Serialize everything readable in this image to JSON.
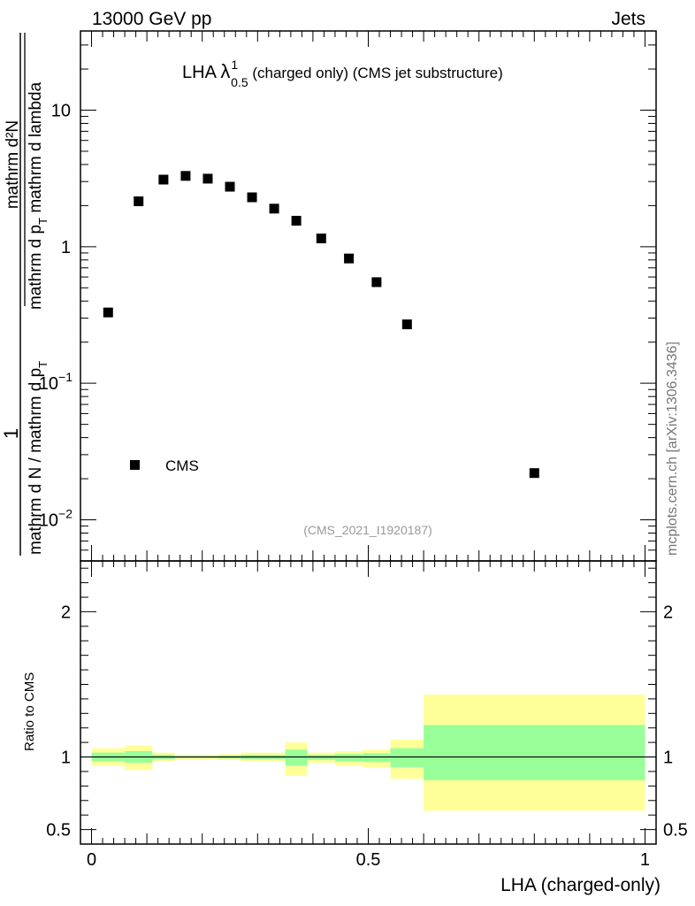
{
  "header": {
    "left": "13000 GeV pp",
    "right": "Jets"
  },
  "watermark": "mcplots.cern.ch [arXiv:1306.3436]",
  "analysis_id": "(CMS_2021_I1920187)",
  "main_ylabel": {
    "numerator": "1",
    "denominator": "mathrm d N / mathrm d p",
    "denominator_sub": "T",
    "dNdp_top": "mathrm d²N",
    "dNdp_bottom": "mathrm d p",
    "dNdp_bottom_sub": "T",
    "dNdp_bottom_rest": " mathrm d lambda"
  },
  "chart_data": [
    {
      "type": "scatter",
      "title": {
        "prefix": "LHA ",
        "lambda": "λ",
        "sup": "1",
        "sub": "0.5",
        "suffix": " (charged only) (CMS jet substructure)"
      },
      "yscale": "log",
      "xlim": [
        -0.02,
        1.02
      ],
      "ylim": [
        0.005,
        38
      ],
      "yticks": [
        {
          "value": 0.01,
          "label": "10",
          "sup": "−2"
        },
        {
          "value": 0.1,
          "label": "10",
          "sup": "−1"
        },
        {
          "value": 1,
          "label": "1",
          "sup": ""
        },
        {
          "value": 10,
          "label": "10",
          "sup": ""
        }
      ],
      "legend": {
        "label": "CMS",
        "position": "bottom-left"
      },
      "series": [
        {
          "name": "CMS",
          "color": "#000000",
          "points": [
            {
              "x": 0.03,
              "y": 0.33
            },
            {
              "x": 0.085,
              "y": 2.15
            },
            {
              "x": 0.13,
              "y": 3.1
            },
            {
              "x": 0.17,
              "y": 3.3
            },
            {
              "x": 0.21,
              "y": 3.15
            },
            {
              "x": 0.25,
              "y": 2.75
            },
            {
              "x": 0.29,
              "y": 2.3
            },
            {
              "x": 0.33,
              "y": 1.9
            },
            {
              "x": 0.37,
              "y": 1.55
            },
            {
              "x": 0.415,
              "y": 1.15
            },
            {
              "x": 0.465,
              "y": 0.82
            },
            {
              "x": 0.515,
              "y": 0.55
            },
            {
              "x": 0.57,
              "y": 0.27
            },
            {
              "x": 0.8,
              "y": 0.022
            }
          ]
        }
      ]
    },
    {
      "type": "area",
      "ylabel": "Ratio to CMS",
      "xlabel": "LHA (charged-only)",
      "xlim": [
        -0.02,
        1.02
      ],
      "ylim": [
        0.4,
        2.35
      ],
      "xticks": [
        {
          "value": 0,
          "label": "0"
        },
        {
          "value": 0.5,
          "label": "0.5"
        },
        {
          "value": 1,
          "label": "1"
        }
      ],
      "yticks": [
        {
          "value": 0.5,
          "label": "0.5"
        },
        {
          "value": 1,
          "label": "1"
        },
        {
          "value": 2,
          "label": "2"
        }
      ],
      "reference_line": 1,
      "band_colors": {
        "outer": "#ffff99",
        "inner": "#99ff99"
      },
      "bands": [
        {
          "x0": 0.0,
          "x1": 0.06,
          "outer": [
            0.94,
            1.06
          ],
          "inner": [
            0.97,
            1.03
          ]
        },
        {
          "x0": 0.06,
          "x1": 0.11,
          "outer": [
            0.91,
            1.08
          ],
          "inner": [
            0.96,
            1.04
          ]
        },
        {
          "x0": 0.11,
          "x1": 0.15,
          "outer": [
            0.97,
            1.03
          ],
          "inner": [
            0.985,
            1.015
          ]
        },
        {
          "x0": 0.15,
          "x1": 0.19,
          "outer": [
            0.985,
            1.015
          ],
          "inner": [
            0.993,
            1.007
          ]
        },
        {
          "x0": 0.19,
          "x1": 0.23,
          "outer": [
            0.985,
            1.015
          ],
          "inner": [
            0.993,
            1.007
          ]
        },
        {
          "x0": 0.23,
          "x1": 0.27,
          "outer": [
            0.98,
            1.02
          ],
          "inner": [
            0.99,
            1.01
          ]
        },
        {
          "x0": 0.27,
          "x1": 0.35,
          "outer": [
            0.97,
            1.03
          ],
          "inner": [
            0.985,
            1.015
          ]
        },
        {
          "x0": 0.35,
          "x1": 0.39,
          "outer": [
            0.87,
            1.1
          ],
          "inner": [
            0.94,
            1.05
          ]
        },
        {
          "x0": 0.39,
          "x1": 0.44,
          "outer": [
            0.96,
            1.03
          ],
          "inner": [
            0.98,
            1.015
          ]
        },
        {
          "x0": 0.44,
          "x1": 0.49,
          "outer": [
            0.94,
            1.04
          ],
          "inner": [
            0.97,
            1.02
          ]
        },
        {
          "x0": 0.49,
          "x1": 0.54,
          "outer": [
            0.93,
            1.05
          ],
          "inner": [
            0.965,
            1.025
          ]
        },
        {
          "x0": 0.54,
          "x1": 0.6,
          "outer": [
            0.85,
            1.12
          ],
          "inner": [
            0.93,
            1.06
          ]
        },
        {
          "x0": 0.6,
          "x1": 1.0,
          "outer": [
            0.63,
            1.43
          ],
          "inner": [
            0.84,
            1.22
          ]
        }
      ]
    }
  ]
}
